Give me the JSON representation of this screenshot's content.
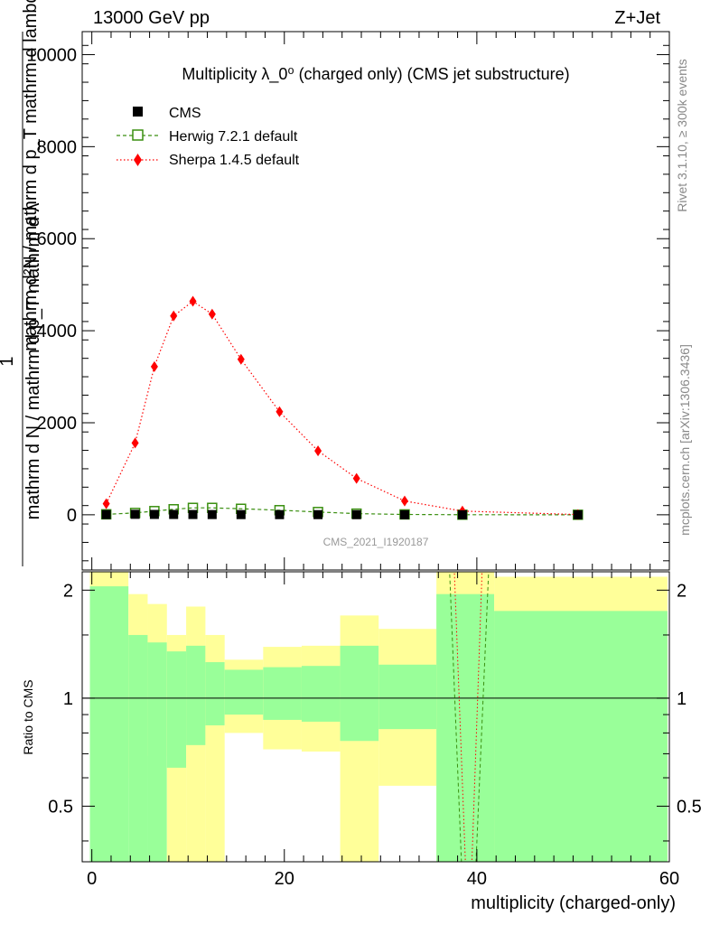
{
  "header": {
    "beam": "13000 GeV pp",
    "process": "Z+Jet"
  },
  "side_labels": {
    "rivet": "Rivet 3.1.10, ≥ 300k events",
    "mcplots": "mcplots.cern.ch [arXiv:1306.3436]"
  },
  "chart_data": [
    {
      "type": "line",
      "title": "Multiplicity λ_0⁰ (charged only) (CMS jet substructure)",
      "watermark": "CMS_2021_I1920187",
      "ylabel_numerator": "1",
      "ylabel_denominator": "mathrm d N / mathrm d p_T mathrm d λ",
      "ylabel_extra": "mathrm d²N / mathrm d p_T mathrm d lambda",
      "xlabel": "multiplicity (charged-only)",
      "xlim": [
        -1,
        60
      ],
      "ylim": [
        -1200,
        10500
      ],
      "xticks": [
        0,
        20,
        40,
        60
      ],
      "yticks": [
        0,
        2000,
        4000,
        6000,
        8000,
        10000
      ],
      "ytick_labels": [
        "0",
        "2000",
        "4000",
        "6000",
        "8000",
        "10000"
      ],
      "legend": [
        "CMS",
        "Herwig 7.2.1 default",
        "Sherpa 1.4.5 default"
      ],
      "series": [
        {
          "name": "CMS",
          "color": "#000000",
          "x": [
            1.5,
            4.5,
            6.5,
            8.5,
            10.5,
            12.5,
            15.5,
            19.5,
            23.5,
            27.5,
            32.5,
            38.5,
            50.5
          ],
          "y": [
            5,
            10,
            8,
            7,
            6,
            5,
            4,
            3,
            3,
            2,
            1,
            0.5,
            0.1
          ]
        },
        {
          "name": "Herwig 7.2.1 default",
          "color": "#3a8f10",
          "x": [
            1.5,
            4.5,
            6.5,
            8.5,
            10.5,
            12.5,
            15.5,
            19.5,
            23.5,
            27.5,
            32.5,
            38.5,
            50.5
          ],
          "y": [
            10,
            40,
            80,
            120,
            150,
            150,
            130,
            100,
            60,
            25,
            8,
            2,
            0.2
          ]
        },
        {
          "name": "Sherpa 1.4.5 default",
          "color": "#ff0000",
          "x": [
            1.5,
            4.5,
            6.5,
            8.5,
            10.5,
            12.5,
            15.5,
            19.5,
            23.5,
            27.5,
            32.5,
            38.5,
            50.5
          ],
          "y": [
            240,
            1560,
            3220,
            4320,
            4640,
            4360,
            3380,
            2240,
            1390,
            790,
            300,
            80,
            5
          ]
        }
      ]
    },
    {
      "type": "area",
      "ylabel": "Ratio to CMS",
      "xlim": [
        -1,
        60
      ],
      "ylim": [
        0.35,
        2.25
      ],
      "yticks": [
        0.5,
        1,
        2
      ],
      "ytick_labels": [
        "0.5",
        "1",
        "2"
      ],
      "reference_line": 1,
      "bins": [
        {
          "lo": -0.2,
          "hi": 3.8,
          "stat_lo": 0.3,
          "stat_hi": 2.05,
          "sys_lo": 0.3,
          "sys_hi": 2.5
        },
        {
          "lo": 3.8,
          "hi": 5.8,
          "stat_lo": 0.3,
          "stat_hi": 1.5,
          "sys_lo": 0.6,
          "sys_hi": 1.95
        },
        {
          "lo": 5.8,
          "hi": 7.8,
          "stat_lo": 0.3,
          "stat_hi": 1.43,
          "sys_lo": 0.69,
          "sys_hi": 1.83
        },
        {
          "lo": 7.8,
          "hi": 9.8,
          "stat_lo": 0.64,
          "stat_hi": 1.35,
          "sys_lo": 0.3,
          "sys_hi": 1.5
        },
        {
          "lo": 9.8,
          "hi": 11.8,
          "stat_lo": 0.74,
          "stat_hi": 1.4,
          "sys_lo": 0.3,
          "sys_hi": 1.8
        },
        {
          "lo": 11.8,
          "hi": 13.8,
          "stat_lo": 0.84,
          "stat_hi": 1.26,
          "sys_lo": 0.3,
          "sys_hi": 1.5
        },
        {
          "lo": 13.8,
          "hi": 17.8,
          "stat_lo": 0.9,
          "stat_hi": 1.2,
          "sys_lo": 0.8,
          "sys_hi": 1.28
        },
        {
          "lo": 17.8,
          "hi": 21.8,
          "stat_lo": 0.87,
          "stat_hi": 1.22,
          "sys_lo": 0.72,
          "sys_hi": 1.39
        },
        {
          "lo": 21.8,
          "hi": 25.8,
          "stat_lo": 0.86,
          "stat_hi": 1.23,
          "sys_lo": 0.71,
          "sys_hi": 1.4
        },
        {
          "lo": 25.8,
          "hi": 29.8,
          "stat_lo": 0.76,
          "stat_hi": 1.4,
          "sys_lo": 0.3,
          "sys_hi": 1.7
        },
        {
          "lo": 29.8,
          "hi": 35.8,
          "stat_lo": 0.82,
          "stat_hi": 1.24,
          "sys_lo": 0.57,
          "sys_hi": 1.56
        },
        {
          "lo": 35.8,
          "hi": 41.8,
          "stat_lo": 0.3,
          "stat_hi": 1.95,
          "sys_lo": 0.3,
          "sys_hi": 2.5
        },
        {
          "lo": 41.8,
          "hi": 59.8,
          "stat_lo": 0.3,
          "stat_hi": 1.75,
          "sys_lo": 0.3,
          "sys_hi": 2.18
        }
      ],
      "mc_lines": [
        {
          "name": "Herwig 7.2.1 default",
          "color": "#3a8f10",
          "points": [
            [
              37.1,
              2.5
            ],
            [
              38.5,
              0.3
            ],
            [
              39.8,
              0.3
            ],
            [
              41.3,
              2.5
            ]
          ]
        },
        {
          "name": "Sherpa 1.4.5 default",
          "color": "#ff0000",
          "points": [
            [
              37.6,
              2.5
            ],
            [
              38.9,
              0.3
            ],
            [
              39.4,
              0.3
            ],
            [
              40.6,
              2.5
            ]
          ]
        }
      ]
    }
  ]
}
